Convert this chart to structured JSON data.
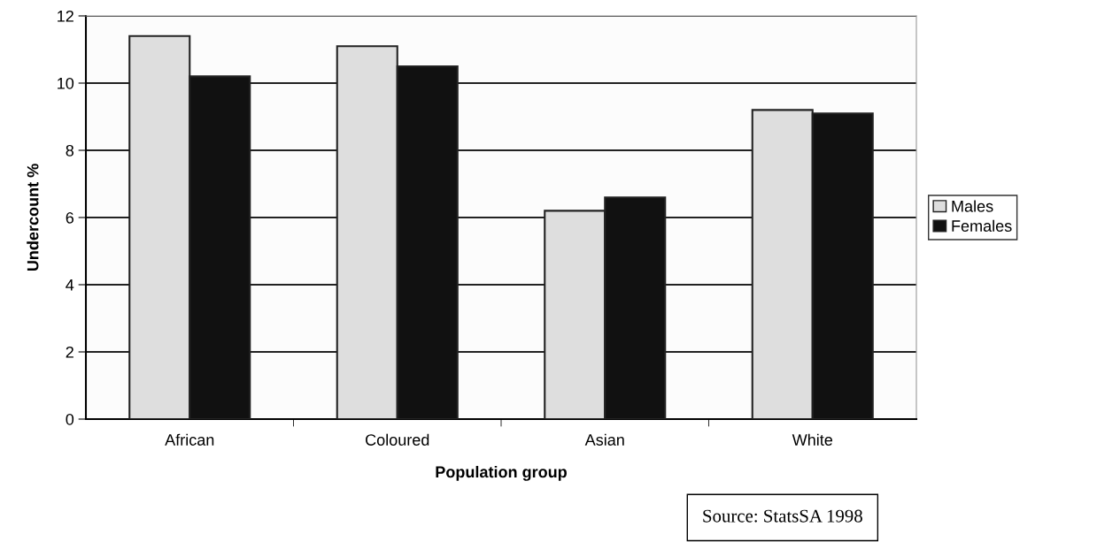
{
  "chart_data": {
    "type": "bar",
    "xlabel": "Population group",
    "ylabel": "Undercount %",
    "categories": [
      "African",
      "Coloured",
      "Asian",
      "White"
    ],
    "series": [
      {
        "name": "Males",
        "color": "#dedede",
        "values": [
          11.4,
          11.1,
          6.2,
          9.2
        ]
      },
      {
        "name": "Females",
        "color": "#111111",
        "values": [
          10.2,
          10.5,
          6.6,
          9.1
        ]
      }
    ],
    "ylim": [
      0,
      12
    ],
    "yticks": [
      0,
      2,
      4,
      6,
      8,
      10,
      12
    ],
    "grid": "y",
    "legend": "right",
    "annotations": [
      "Source: StatsSA 1998"
    ]
  }
}
